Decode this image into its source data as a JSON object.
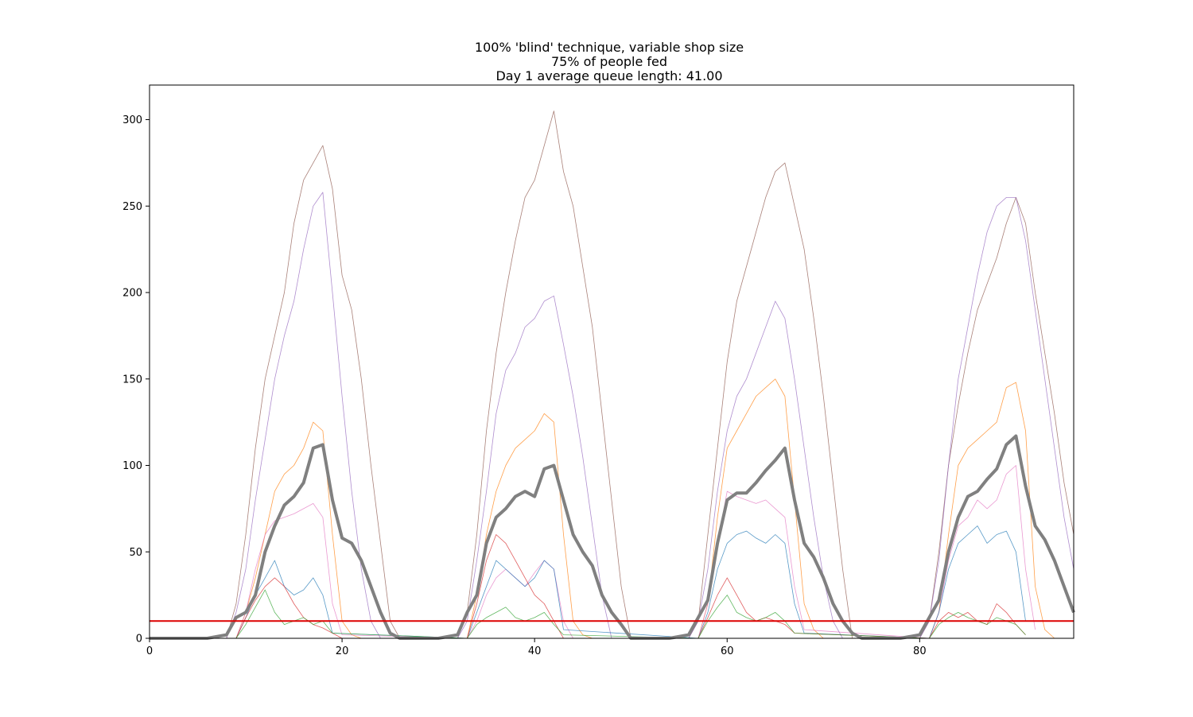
{
  "chart_data": {
    "type": "line",
    "title_lines": [
      "100% 'blind' technique, variable shop size",
      "75% of people fed",
      "Day 1 average queue length: 41.00"
    ],
    "xlabel": "",
    "ylabel": "",
    "xlim": [
      0,
      96
    ],
    "ylim": [
      0,
      320
    ],
    "x_ticks": [
      0,
      20,
      40,
      60,
      80
    ],
    "y_ticks": [
      0,
      50,
      100,
      150,
      200,
      250,
      300
    ],
    "grid": false,
    "threshold": {
      "value": 10,
      "color": "#dd0000"
    },
    "colors": {
      "mean": "#808080",
      "blue": "#1f77b4",
      "orange": "#ff7f0e",
      "green": "#2ca02c",
      "red": "#d62728",
      "purple": "#9467bd",
      "brown": "#8c564b",
      "pink": "#e377c2"
    },
    "series": [
      {
        "role": "individual",
        "color_key": "brown",
        "x": [
          0,
          8,
          9,
          10,
          11,
          12,
          13,
          14,
          15,
          16,
          17,
          18,
          19,
          20,
          21,
          22,
          23,
          24,
          25,
          26,
          32,
          33,
          34,
          35,
          36,
          37,
          38,
          39,
          40,
          41,
          42,
          43,
          44,
          45,
          46,
          47,
          48,
          49,
          50,
          51,
          56,
          57,
          58,
          59,
          60,
          61,
          62,
          63,
          64,
          65,
          66,
          67,
          68,
          69,
          70,
          71,
          72,
          73,
          74,
          75,
          80,
          81,
          82,
          83,
          84,
          85,
          86,
          87,
          88,
          89,
          90,
          91,
          92,
          93,
          94,
          95,
          96
        ],
        "y": [
          0,
          0,
          20,
          60,
          110,
          150,
          175,
          200,
          240,
          265,
          275,
          285,
          260,
          210,
          190,
          150,
          100,
          55,
          10,
          0,
          0,
          15,
          60,
          120,
          165,
          200,
          230,
          255,
          265,
          285,
          305,
          270,
          250,
          215,
          180,
          130,
          80,
          30,
          0,
          0,
          0,
          10,
          60,
          110,
          160,
          195,
          215,
          235,
          255,
          270,
          275,
          250,
          225,
          185,
          140,
          90,
          40,
          0,
          0,
          0,
          0,
          10,
          50,
          100,
          135,
          165,
          190,
          205,
          220,
          240,
          255,
          240,
          200,
          165,
          130,
          90,
          60
        ]
      },
      {
        "role": "individual",
        "color_key": "purple",
        "x": [
          0,
          8,
          9,
          10,
          11,
          12,
          13,
          14,
          15,
          16,
          17,
          18,
          19,
          20,
          21,
          22,
          23,
          24,
          25,
          32,
          33,
          34,
          35,
          36,
          37,
          38,
          39,
          40,
          41,
          42,
          43,
          44,
          45,
          46,
          47,
          48,
          49,
          56,
          57,
          58,
          59,
          60,
          61,
          62,
          63,
          64,
          65,
          66,
          67,
          68,
          69,
          70,
          71,
          72,
          73,
          80,
          81,
          82,
          83,
          84,
          85,
          86,
          87,
          88,
          89,
          90,
          91,
          92,
          93,
          94,
          95,
          96
        ],
        "y": [
          0,
          0,
          15,
          40,
          80,
          115,
          150,
          175,
          195,
          225,
          250,
          258,
          200,
          140,
          85,
          40,
          10,
          0,
          0,
          0,
          10,
          45,
          85,
          130,
          155,
          165,
          180,
          185,
          195,
          198,
          170,
          140,
          105,
          65,
          25,
          0,
          0,
          0,
          10,
          40,
          85,
          120,
          140,
          150,
          165,
          180,
          195,
          185,
          150,
          110,
          70,
          35,
          10,
          0,
          0,
          0,
          10,
          45,
          100,
          150,
          180,
          210,
          235,
          250,
          255,
          255,
          230,
          190,
          150,
          110,
          70,
          40
        ]
      },
      {
        "role": "individual",
        "color_key": "orange",
        "x": [
          0,
          9,
          10,
          11,
          12,
          13,
          14,
          15,
          16,
          17,
          18,
          19,
          20,
          21,
          22,
          33,
          34,
          35,
          36,
          37,
          38,
          39,
          40,
          41,
          42,
          43,
          44,
          45,
          46,
          57,
          58,
          59,
          60,
          61,
          62,
          63,
          64,
          65,
          66,
          67,
          68,
          69,
          70,
          81,
          82,
          83,
          84,
          85,
          86,
          87,
          88,
          89,
          90,
          91,
          92,
          93,
          94
        ],
        "y": [
          0,
          0,
          15,
          35,
          60,
          85,
          95,
          100,
          110,
          125,
          120,
          60,
          10,
          2,
          0,
          0,
          25,
          60,
          85,
          100,
          110,
          115,
          120,
          130,
          125,
          60,
          10,
          2,
          0,
          0,
          20,
          70,
          110,
          120,
          130,
          140,
          145,
          150,
          140,
          80,
          20,
          5,
          0,
          0,
          15,
          60,
          100,
          110,
          115,
          120,
          125,
          145,
          148,
          120,
          30,
          5,
          0
        ],
        "note": "x, y in data units"
      },
      {
        "role": "individual",
        "color_key": "pink",
        "x": [
          0,
          9,
          10,
          11,
          12,
          13,
          14,
          15,
          16,
          17,
          18,
          19,
          20,
          33,
          34,
          35,
          36,
          37,
          38,
          39,
          40,
          41,
          42,
          43,
          44,
          57,
          58,
          59,
          60,
          61,
          62,
          63,
          64,
          65,
          66,
          67,
          68,
          81,
          82,
          83,
          84,
          85,
          86,
          87,
          88,
          89,
          90,
          91,
          92
        ],
        "y": [
          0,
          0,
          15,
          40,
          60,
          68,
          70,
          72,
          75,
          78,
          70,
          20,
          2,
          0,
          10,
          25,
          35,
          40,
          35,
          30,
          38,
          45,
          40,
          10,
          0,
          0,
          20,
          55,
          85,
          82,
          80,
          78,
          80,
          75,
          70,
          30,
          5,
          0,
          15,
          45,
          65,
          70,
          80,
          75,
          80,
          95,
          100,
          40,
          5
        ]
      },
      {
        "role": "individual",
        "color_key": "blue",
        "x": [
          0,
          9,
          10,
          11,
          12,
          13,
          14,
          15,
          16,
          17,
          18,
          19,
          33,
          34,
          35,
          36,
          37,
          38,
          39,
          40,
          41,
          42,
          43,
          57,
          58,
          59,
          60,
          61,
          62,
          63,
          64,
          65,
          66,
          67,
          68,
          81,
          82,
          83,
          84,
          85,
          86,
          87,
          88,
          89,
          90,
          91
        ],
        "y": [
          0,
          0,
          12,
          25,
          35,
          45,
          30,
          25,
          28,
          35,
          25,
          3,
          0,
          15,
          30,
          45,
          40,
          35,
          30,
          35,
          45,
          40,
          5,
          0,
          15,
          40,
          55,
          60,
          62,
          58,
          55,
          60,
          55,
          20,
          3,
          0,
          15,
          40,
          55,
          60,
          65,
          55,
          60,
          62,
          50,
          10
        ]
      },
      {
        "role": "individual",
        "color_key": "red",
        "x": [
          0,
          9,
          10,
          11,
          12,
          13,
          14,
          15,
          16,
          17,
          18,
          19,
          20,
          33,
          34,
          35,
          36,
          37,
          38,
          39,
          40,
          41,
          42,
          43,
          57,
          58,
          59,
          60,
          61,
          62,
          63,
          64,
          65,
          66,
          67,
          81,
          82,
          83,
          84,
          85,
          86,
          87,
          88,
          89,
          90,
          91
        ],
        "y": [
          0,
          0,
          12,
          22,
          30,
          35,
          30,
          20,
          12,
          8,
          6,
          3,
          0,
          0,
          20,
          45,
          60,
          55,
          45,
          35,
          25,
          20,
          10,
          0,
          0,
          12,
          25,
          35,
          25,
          15,
          10,
          12,
          10,
          8,
          3,
          0,
          10,
          15,
          12,
          15,
          10,
          8,
          20,
          15,
          8,
          2
        ]
      },
      {
        "role": "individual",
        "color_key": "green",
        "x": [
          0,
          9,
          10,
          11,
          12,
          13,
          14,
          15,
          16,
          17,
          18,
          19,
          33,
          34,
          35,
          36,
          37,
          38,
          39,
          40,
          41,
          42,
          43,
          57,
          58,
          59,
          60,
          61,
          62,
          63,
          64,
          65,
          66,
          67,
          81,
          82,
          83,
          84,
          85,
          86,
          87,
          88,
          89,
          90,
          91
        ],
        "y": [
          0,
          0,
          8,
          18,
          28,
          15,
          8,
          10,
          12,
          8,
          10,
          3,
          0,
          8,
          12,
          15,
          18,
          12,
          10,
          12,
          15,
          8,
          2,
          0,
          10,
          18,
          25,
          15,
          12,
          10,
          12,
          15,
          10,
          3,
          0,
          8,
          12,
          15,
          12,
          10,
          8,
          12,
          10,
          8,
          2
        ]
      },
      {
        "role": "mean",
        "color_key": "mean",
        "x": [
          0,
          6,
          8,
          9,
          10,
          11,
          12,
          13,
          14,
          15,
          16,
          17,
          18,
          19,
          20,
          21,
          22,
          23,
          24,
          25,
          26,
          30,
          32,
          33,
          34,
          35,
          36,
          37,
          38,
          39,
          40,
          41,
          42,
          43,
          44,
          45,
          46,
          47,
          48,
          49,
          50,
          51,
          54,
          56,
          57,
          58,
          59,
          60,
          61,
          62,
          63,
          64,
          65,
          66,
          67,
          68,
          69,
          70,
          71,
          72,
          73,
          74,
          78,
          80,
          81,
          82,
          83,
          84,
          85,
          86,
          87,
          88,
          89,
          90,
          91,
          92,
          93,
          94,
          95,
          96
        ],
        "y": [
          0,
          0,
          2,
          12,
          15,
          25,
          50,
          65,
          77,
          82,
          90,
          110,
          112,
          80,
          58,
          55,
          45,
          30,
          15,
          3,
          0,
          0,
          2,
          15,
          25,
          55,
          70,
          75,
          82,
          85,
          82,
          98,
          100,
          80,
          60,
          50,
          42,
          25,
          15,
          8,
          0,
          0,
          0,
          2,
          12,
          22,
          55,
          80,
          84,
          84,
          90,
          97,
          103,
          110,
          80,
          55,
          47,
          35,
          20,
          10,
          3,
          0,
          0,
          2,
          12,
          22,
          50,
          70,
          82,
          85,
          92,
          98,
          112,
          117,
          88,
          65,
          57,
          45,
          30,
          15
        ]
      }
    ]
  }
}
